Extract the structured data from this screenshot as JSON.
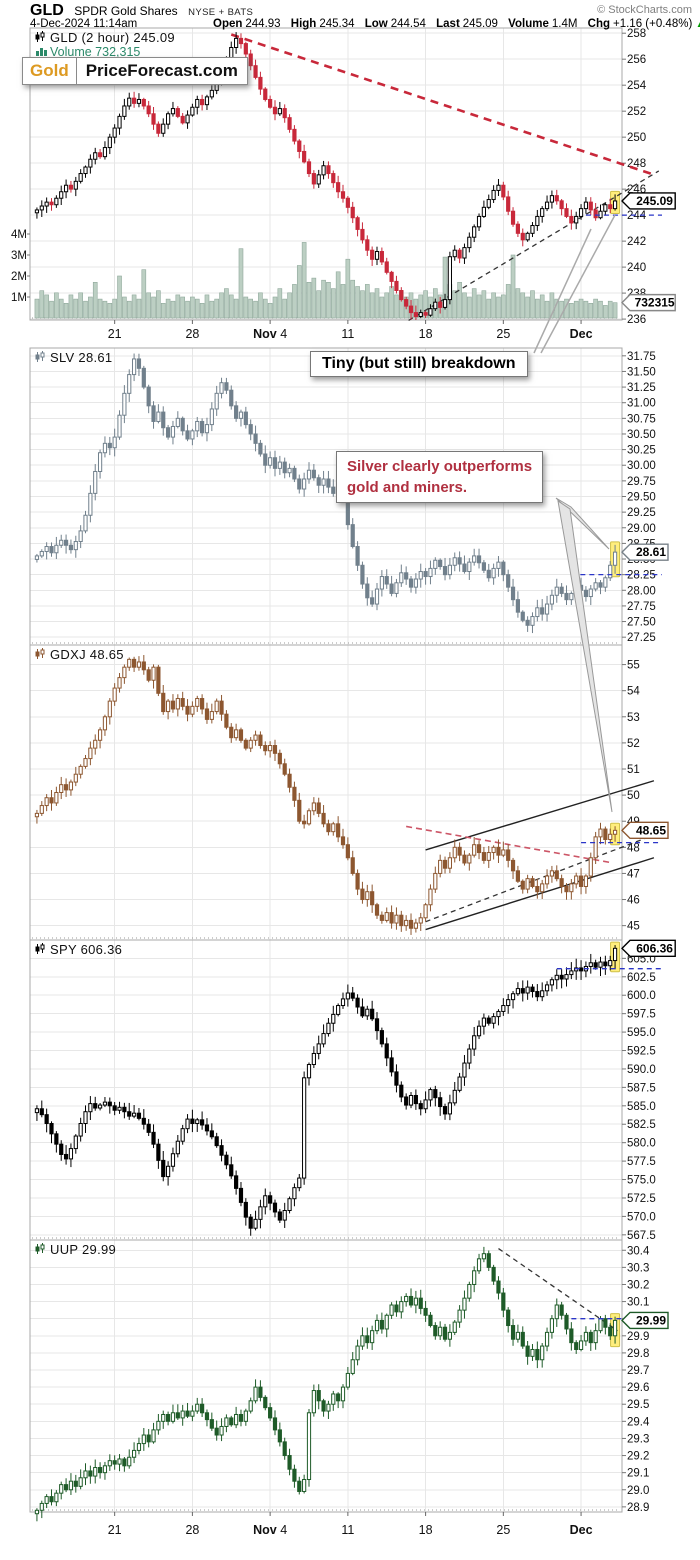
{
  "header": {
    "symbol": "GLD",
    "name": "SPDR Gold Shares",
    "exchange": "NYSE + BATS",
    "copyright": "© StockCharts.com",
    "datetime": "4-Dec-2024 11:14am",
    "quote": {
      "open_label": "Open",
      "open": "244.93",
      "high_label": "High",
      "high": "245.34",
      "low_label": "Low",
      "low": "244.54",
      "last_label": "Last",
      "last": "245.09",
      "volume_label": "Volume",
      "volume": "1.4M",
      "chg_label": "Chg",
      "chg": "+1.16 (+0.48%)",
      "chg_arrow": "▲",
      "chg_color": "#009900"
    }
  },
  "logo": {
    "part1": "Gold",
    "part2": "PriceForecast.com",
    "part1_color": "#dd9a22"
  },
  "annotations": {
    "breakdown": {
      "text": "Tiny (but still) breakdown"
    },
    "silver": {
      "line1": "Silver clearly outperforms",
      "line2": "gold and miners.",
      "color": "#b03040"
    }
  },
  "chart_data": {
    "type": "candlestick",
    "bars": 120,
    "x_tick_bars": [
      16,
      32,
      48,
      64,
      80,
      96,
      112
    ],
    "x_tick_labels": [
      {
        "bold": "",
        "text": "21"
      },
      {
        "bold": "",
        "text": "28"
      },
      {
        "bold": "Nov",
        "text": "4"
      },
      {
        "bold": "",
        "text": "11"
      },
      {
        "bold": "",
        "text": "18"
      },
      {
        "bold": "",
        "text": "25"
      },
      {
        "bold": "Dec",
        "text": ""
      }
    ],
    "panels": [
      {
        "symbol": "GLD",
        "legend": "GLD (2 hour) 245.09",
        "legend2": "Volume 732,315",
        "legend2_color": "#2c8a6a",
        "last": "245.09",
        "last_value": 245.09,
        "box_color": "#000000",
        "ylim": [
          235.93,
          258.4
        ],
        "tick_decimals": 0,
        "y_ticks": [
          258,
          256,
          254,
          252,
          250,
          248,
          246,
          244,
          242,
          240,
          238,
          236
        ],
        "color_up": "#000000",
        "color_down": "#c8283a",
        "wiggle": 0.55,
        "hline": {
          "level": 244.0,
          "from_bar": 113
        },
        "trendlines": [
          {
            "b1": 40,
            "p1": 257.9,
            "b2": 127.5,
            "p2": 247.05,
            "c": "#c8283a",
            "d": "8,6",
            "w": 2.6
          },
          {
            "b1": 76.5,
            "p1": 235.9,
            "b2": 128,
            "p2": 247.4,
            "c": "#333333",
            "d": "5,4",
            "w": 1.3
          }
        ],
        "volume_box": "732315",
        "volume_axis": [
          "1M",
          "2M",
          "3M",
          "4M"
        ],
        "closes": [
          244.4,
          244.7,
          245.0,
          244.8,
          245.3,
          245.8,
          246.3,
          246.0,
          246.6,
          247.2,
          247.7,
          248.3,
          248.8,
          248.5,
          249.2,
          250.0,
          250.7,
          251.6,
          252.4,
          253.0,
          252.6,
          252.9,
          252.4,
          251.8,
          251.0,
          250.3,
          251.0,
          251.8,
          252.2,
          251.6,
          251.1,
          251.7,
          252.3,
          252.9,
          252.5,
          253.1,
          253.6,
          254.1,
          255.0,
          256.0,
          256.9,
          257.6,
          257.2,
          256.4,
          255.5,
          254.6,
          253.7,
          252.9,
          252.3,
          251.8,
          252.2,
          251.5,
          250.6,
          249.7,
          248.9,
          248.1,
          247.2,
          246.4,
          247.1,
          247.8,
          247.2,
          246.5,
          245.8,
          245.3,
          244.6,
          243.8,
          242.9,
          242.1,
          241.3,
          240.6,
          241.2,
          240.4,
          239.6,
          238.9,
          238.2,
          237.5,
          237.0,
          236.5,
          236.2,
          236.5,
          236.3,
          236.8,
          237.3,
          236.9,
          237.5,
          240.8,
          241.3,
          240.7,
          241.5,
          242.3,
          243.1,
          243.9,
          244.6,
          245.2,
          245.9,
          246.3,
          245.4,
          244.3,
          243.3,
          242.6,
          242.1,
          242.6,
          243.2,
          243.9,
          244.5,
          245.0,
          245.5,
          245.1,
          244.5,
          243.9,
          243.4,
          243.9,
          244.5,
          245.0,
          244.4,
          243.8,
          244.3,
          244.8,
          244.5,
          245.09
        ],
        "volume": [
          0.9,
          1.3,
          1.1,
          0.8,
          1.2,
          0.9,
          0.7,
          1.1,
          0.9,
          1.2,
          0.8,
          1.0,
          1.7,
          0.9,
          0.8,
          0.7,
          0.9,
          2.0,
          1.0,
          0.8,
          1.1,
          0.9,
          2.3,
          1.2,
          1.0,
          1.3,
          0.7,
          0.9,
          0.8,
          1.1,
          1.0,
          0.8,
          1.0,
          0.9,
          0.7,
          1.1,
          0.8,
          0.9,
          1.2,
          1.4,
          1.1,
          0.9,
          3.3,
          1.0,
          0.9,
          0.8,
          1.2,
          0.9,
          0.7,
          1.0,
          1.4,
          0.9,
          1.2,
          1.6,
          2.5,
          3.6,
          1.7,
          1.9,
          1.3,
          1.8,
          1.7,
          1.4,
          2.2,
          1.6,
          2.8,
          1.8,
          1.5,
          1.3,
          1.6,
          1.2,
          1.4,
          1.0,
          1.2,
          1.5,
          1.1,
          1.3,
          1.0,
          1.2,
          0.9,
          1.1,
          1.3,
          1.0,
          1.4,
          1.1,
          2.9,
          1.6,
          1.3,
          1.7,
          1.2,
          1.0,
          1.4,
          1.1,
          1.3,
          0.9,
          1.2,
          1.0,
          1.1,
          1.6,
          3.0,
          1.4,
          1.2,
          1.0,
          1.3,
          0.9,
          1.1,
          0.8,
          1.2,
          0.9,
          0.8,
          0.9,
          0.7,
          0.8,
          0.9,
          0.8,
          0.7,
          0.9,
          0.8,
          0.6,
          0.8,
          0.73
        ]
      },
      {
        "symbol": "SLV",
        "legend": "SLV 28.61",
        "last": "28.61",
        "last_value": 28.61,
        "box_color": "#778088",
        "ylim": [
          27.125,
          31.875
        ],
        "tick_decimals": 2,
        "y_ticks": [
          31.75,
          31.5,
          31.25,
          31.0,
          30.75,
          30.5,
          30.25,
          30.0,
          29.75,
          29.5,
          29.25,
          29.0,
          28.75,
          28.5,
          28.25,
          28.0,
          27.75,
          27.5,
          27.25
        ],
        "color": "#71808c",
        "wiggle": 0.14,
        "hline": {
          "level": 28.25,
          "from_bar": 110
        },
        "trendlines": [],
        "closes": [
          28.55,
          28.62,
          28.7,
          28.6,
          28.72,
          28.8,
          28.72,
          28.65,
          28.78,
          28.95,
          29.2,
          29.55,
          29.9,
          30.2,
          30.35,
          30.28,
          30.45,
          30.8,
          31.15,
          31.45,
          31.7,
          31.55,
          31.25,
          30.95,
          30.7,
          30.85,
          30.6,
          30.45,
          30.62,
          30.75,
          30.55,
          30.42,
          30.55,
          30.7,
          30.52,
          30.65,
          30.9,
          31.15,
          31.32,
          31.2,
          30.95,
          30.75,
          30.85,
          30.65,
          30.5,
          30.35,
          30.18,
          30.0,
          30.12,
          29.95,
          30.05,
          29.88,
          29.95,
          29.78,
          29.62,
          29.78,
          29.92,
          29.8,
          29.68,
          29.78,
          29.65,
          29.55,
          29.62,
          29.5,
          29.05,
          28.7,
          28.4,
          28.1,
          27.88,
          27.78,
          28.02,
          28.22,
          28.1,
          27.95,
          28.12,
          28.28,
          28.18,
          28.05,
          28.18,
          28.3,
          28.22,
          28.35,
          28.48,
          28.38,
          28.25,
          28.4,
          28.52,
          28.42,
          28.3,
          28.45,
          28.55,
          28.44,
          28.32,
          28.2,
          28.35,
          28.45,
          28.25,
          28.05,
          27.85,
          27.65,
          27.52,
          27.44,
          27.58,
          27.72,
          27.62,
          27.78,
          27.92,
          28.05,
          27.95,
          27.85,
          27.95,
          28.08,
          28.0,
          27.9,
          28.02,
          28.12,
          28.05,
          28.2,
          28.4,
          28.61
        ]
      },
      {
        "symbol": "GDXJ",
        "legend": "GDXJ 48.65",
        "last": "48.65",
        "last_value": 48.65,
        "box_color": "#8d5730",
        "ylim": [
          44.45,
          55.75
        ],
        "tick_decimals": 0,
        "y_ticks": [
          55,
          54,
          53,
          52,
          51,
          50,
          49,
          48,
          47,
          46,
          45
        ],
        "color": "#8d5730",
        "wiggle": 0.32,
        "hline": {
          "level": 48.18,
          "from_bar": 112
        },
        "trendlines": [
          {
            "b1": 80,
            "p1": 47.9,
            "b2": 127,
            "p2": 50.55,
            "c": "#222222",
            "d": "",
            "w": 1.4
          },
          {
            "b1": 80,
            "p1": 44.85,
            "b2": 127,
            "p2": 47.6,
            "c": "#222222",
            "d": "",
            "w": 1.4
          },
          {
            "b1": 80,
            "p1": 45.15,
            "b2": 126,
            "p2": 48.4,
            "c": "#333333",
            "d": "5,4",
            "w": 1.3
          },
          {
            "b1": 76,
            "p1": 48.8,
            "b2": 118,
            "p2": 47.42,
            "c": "#cc5566",
            "d": "6,4",
            "w": 1.6
          }
        ],
        "closes": [
          49.3,
          49.6,
          49.9,
          49.7,
          50.1,
          50.4,
          50.2,
          50.5,
          50.8,
          51.1,
          51.4,
          51.8,
          52.1,
          52.5,
          53.0,
          53.6,
          54.1,
          54.5,
          54.9,
          55.2,
          54.9,
          55.1,
          54.8,
          54.4,
          54.9,
          53.9,
          53.2,
          53.6,
          53.3,
          53.7,
          53.4,
          53.1,
          53.4,
          53.7,
          53.3,
          52.9,
          53.2,
          53.6,
          53.1,
          52.6,
          52.2,
          52.5,
          52.1,
          51.8,
          52.1,
          52.3,
          51.9,
          51.7,
          51.9,
          51.6,
          51.2,
          50.8,
          50.3,
          49.8,
          49.0,
          48.9,
          49.4,
          49.7,
          49.3,
          48.9,
          48.6,
          48.9,
          48.4,
          48.1,
          47.6,
          47.0,
          46.4,
          46.0,
          46.3,
          45.8,
          45.4,
          45.2,
          45.5,
          45.1,
          45.4,
          45.0,
          45.2,
          44.9,
          45.1,
          45.3,
          45.8,
          46.4,
          47.0,
          47.5,
          47.2,
          47.6,
          48.0,
          47.7,
          47.4,
          47.7,
          48.1,
          47.8,
          47.5,
          47.8,
          48.0,
          47.7,
          47.9,
          47.5,
          47.1,
          46.7,
          46.4,
          46.8,
          46.5,
          46.3,
          46.6,
          46.9,
          47.1,
          46.8,
          46.5,
          46.3,
          46.6,
          46.9,
          46.5,
          46.9,
          47.6,
          48.4,
          48.7,
          48.3,
          48.5,
          48.65
        ]
      },
      {
        "symbol": "SPY",
        "legend": "SPY 606.36",
        "last": "606.36",
        "last_value": 606.36,
        "box_color": "#000000",
        "ylim": [
          566.8,
          607.49
        ],
        "tick_decimals": 1,
        "y_ticks": [
          605.0,
          602.5,
          600.0,
          597.5,
          595.0,
          592.5,
          590.0,
          587.5,
          585.0,
          582.5,
          580.0,
          577.5,
          575.0,
          572.5,
          570.0,
          567.5
        ],
        "color": "#000000",
        "wiggle": 1.3,
        "hline": {
          "level": 603.6,
          "from_bar": 107
        },
        "trendlines": [],
        "closes": [
          584.6,
          583.8,
          582.6,
          581.2,
          579.8,
          578.4,
          577.8,
          579.2,
          580.9,
          582.6,
          584.2,
          585.3,
          584.7,
          585.1,
          585.5,
          585.0,
          584.4,
          584.8,
          584.2,
          583.6,
          584.0,
          583.3,
          582.5,
          581.4,
          579.8,
          577.6,
          575.4,
          576.8,
          578.5,
          580.2,
          581.9,
          583.2,
          582.6,
          583.1,
          582.4,
          581.6,
          580.8,
          579.6,
          578.3,
          577.0,
          575.5,
          573.8,
          571.9,
          569.9,
          568.4,
          569.6,
          571.3,
          572.8,
          571.8,
          570.6,
          569.5,
          570.8,
          572.4,
          573.9,
          575.2,
          588.8,
          590.6,
          592.1,
          593.4,
          594.8,
          596.2,
          597.4,
          598.6,
          599.5,
          600.3,
          599.6,
          598.4,
          597.2,
          598.1,
          596.8,
          595.2,
          593.4,
          591.5,
          589.6,
          587.8,
          586.2,
          585.1,
          586.4,
          585.3,
          584.6,
          585.8,
          587.2,
          586.1,
          584.9,
          583.9,
          585.4,
          587.1,
          588.9,
          590.8,
          592.7,
          594.5,
          595.8,
          596.9,
          596.2,
          597.1,
          597.8,
          598.6,
          599.4,
          600.2,
          600.9,
          600.3,
          601.1,
          600.5,
          599.8,
          600.6,
          601.4,
          602.1,
          602.7,
          602.2,
          602.8,
          603.3,
          603.7,
          603.3,
          603.9,
          604.4,
          603.8,
          604.5,
          604.0,
          604.7,
          606.36
        ]
      },
      {
        "symbol": "UUP",
        "legend": "UUP 29.99",
        "last": "29.99",
        "last_value": 29.99,
        "box_color": "#1e5b28",
        "ylim": [
          28.87,
          30.46
        ],
        "tick_decimals": 1,
        "y_ticks": [
          30.4,
          30.3,
          30.2,
          30.1,
          30.0,
          29.9,
          29.8,
          29.7,
          29.6,
          29.5,
          29.4,
          29.3,
          29.2,
          29.1,
          29.0,
          28.9
        ],
        "color": "#1e5b28",
        "wiggle": 0.05,
        "hline": {
          "level": 30.0,
          "from_bar": 110
        },
        "trendlines": [
          {
            "b1": 95,
            "p1": 30.41,
            "b2": 119.5,
            "p2": 29.93,
            "c": "#333333",
            "d": "5,4",
            "w": 1.3
          }
        ],
        "closes": [
          28.88,
          28.92,
          28.96,
          28.93,
          28.98,
          29.03,
          29.0,
          29.05,
          29.02,
          29.07,
          29.11,
          29.08,
          29.13,
          29.1,
          29.14,
          29.17,
          29.15,
          29.18,
          29.14,
          29.19,
          29.23,
          29.27,
          29.32,
          29.28,
          29.35,
          29.4,
          29.44,
          29.4,
          29.45,
          29.42,
          29.46,
          29.43,
          29.46,
          29.5,
          29.45,
          29.41,
          29.36,
          29.32,
          29.37,
          29.42,
          29.38,
          29.44,
          29.4,
          29.46,
          29.52,
          29.6,
          29.54,
          29.48,
          29.42,
          29.35,
          29.28,
          29.2,
          29.12,
          29.05,
          28.99,
          29.06,
          29.45,
          29.58,
          29.52,
          29.46,
          29.5,
          29.56,
          29.52,
          29.6,
          29.68,
          29.76,
          29.84,
          29.9,
          29.86,
          29.93,
          29.99,
          29.94,
          30.02,
          30.08,
          30.04,
          30.1,
          30.13,
          30.08,
          30.12,
          30.06,
          30.02,
          29.96,
          29.9,
          29.95,
          29.88,
          29.92,
          29.98,
          30.05,
          30.12,
          30.2,
          30.28,
          30.35,
          30.38,
          30.3,
          30.22,
          30.15,
          30.05,
          29.96,
          29.88,
          29.92,
          29.84,
          29.78,
          29.82,
          29.76,
          29.84,
          29.92,
          30.0,
          30.08,
          30.02,
          29.94,
          29.86,
          29.82,
          29.87,
          29.92,
          29.86,
          29.93,
          30.0,
          29.95,
          29.9,
          29.99
        ]
      }
    ]
  }
}
